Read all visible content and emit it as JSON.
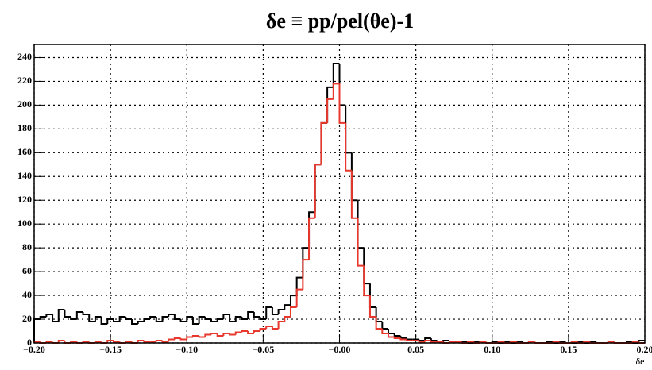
{
  "chart_data": {
    "type": "histogram",
    "title": "δe ≡ pp/pel(θe)-1",
    "x_label": "δe",
    "bins": [
      -0.2,
      -0.196,
      -0.192,
      -0.188,
      -0.184,
      -0.18,
      -0.176,
      -0.172,
      -0.168,
      -0.164,
      -0.16,
      -0.156,
      -0.152,
      -0.148,
      -0.144,
      -0.14,
      -0.136,
      -0.132,
      -0.128,
      -0.124,
      -0.12,
      -0.116,
      -0.112,
      -0.108,
      -0.104,
      -0.1,
      -0.096,
      -0.092,
      -0.088,
      -0.084,
      -0.08,
      -0.076,
      -0.072,
      -0.068,
      -0.064,
      -0.06,
      -0.056,
      -0.052,
      -0.048,
      -0.044,
      -0.04,
      -0.036,
      -0.032,
      -0.028,
      -0.024,
      -0.02,
      -0.016,
      -0.012,
      -0.008,
      -0.004,
      0,
      0.004,
      0.008,
      0.012,
      0.016,
      0.02,
      0.024,
      0.028,
      0.032,
      0.036,
      0.04,
      0.044,
      0.048,
      0.052,
      0.056,
      0.06,
      0.064,
      0.068,
      0.072,
      0.076,
      0.08,
      0.084,
      0.088,
      0.092,
      0.096,
      0.1,
      0.104,
      0.108,
      0.112,
      0.116,
      0.12,
      0.124,
      0.128,
      0.132,
      0.136,
      0.14,
      0.144,
      0.148,
      0.152,
      0.156,
      0.16,
      0.164,
      0.168,
      0.172,
      0.176,
      0.18,
      0.184,
      0.188,
      0.192,
      0.196,
      0.2
    ],
    "series": [
      {
        "color": "#000000",
        "values": [
          20,
          22,
          24,
          18,
          28,
          22,
          20,
          26,
          24,
          18,
          22,
          16,
          20,
          18,
          22,
          20,
          16,
          18,
          20,
          22,
          18,
          22,
          24,
          20,
          18,
          22,
          16,
          22,
          20,
          18,
          20,
          24,
          18,
          22,
          20,
          26,
          22,
          20,
          30,
          24,
          28,
          32,
          40,
          55,
          80,
          110,
          150,
          185,
          215,
          235,
          200,
          160,
          120,
          80,
          50,
          30,
          18,
          12,
          8,
          6,
          4,
          3,
          3,
          2,
          4,
          2,
          1,
          2,
          1,
          1,
          1,
          0,
          1,
          1,
          0,
          1,
          0,
          1,
          0,
          1,
          0,
          1,
          0,
          0,
          1,
          0,
          1,
          0,
          0,
          1,
          0,
          1,
          0,
          0,
          1,
          0,
          0,
          1,
          0,
          2
        ]
      },
      {
        "color": "#e8372c",
        "values": [
          1,
          0,
          1,
          0,
          2,
          0,
          1,
          0,
          1,
          0,
          1,
          0,
          2,
          1,
          0,
          1,
          0,
          2,
          1,
          1,
          2,
          1,
          3,
          4,
          3,
          5,
          6,
          5,
          7,
          8,
          6,
          8,
          7,
          9,
          10,
          8,
          10,
          12,
          14,
          12,
          18,
          22,
          30,
          45,
          70,
          105,
          150,
          185,
          205,
          218,
          185,
          145,
          105,
          65,
          40,
          22,
          12,
          8,
          5,
          4,
          3,
          2,
          2,
          1,
          2,
          1,
          1,
          0,
          1,
          1,
          0,
          1,
          0,
          1,
          0,
          0,
          1,
          0,
          1,
          0,
          0,
          1,
          0,
          0,
          0,
          1,
          0,
          0,
          1,
          0,
          1,
          0,
          0,
          0,
          1,
          0,
          0,
          0,
          1,
          0
        ]
      }
    ],
    "xlim": [
      -0.2,
      0.2
    ],
    "xticks": [
      {
        "value": -0.2,
        "label": "−0.20"
      },
      {
        "value": -0.15,
        "label": "−0.15"
      },
      {
        "value": -0.1,
        "label": "−0.10"
      },
      {
        "value": -0.05,
        "label": "−0.05"
      },
      {
        "value": 0,
        "label": "−0.00"
      },
      {
        "value": 0.05,
        "label": "0.05"
      },
      {
        "value": 0.1,
        "label": "0.10"
      },
      {
        "value": 0.15,
        "label": "0.15"
      },
      {
        "value": 0.2,
        "label": "0.20"
      }
    ],
    "ylim": [
      0,
      251
    ],
    "yticks": [
      0,
      20,
      40,
      60,
      80,
      100,
      120,
      140,
      160,
      180,
      200,
      220,
      240
    ],
    "grid": true
  }
}
